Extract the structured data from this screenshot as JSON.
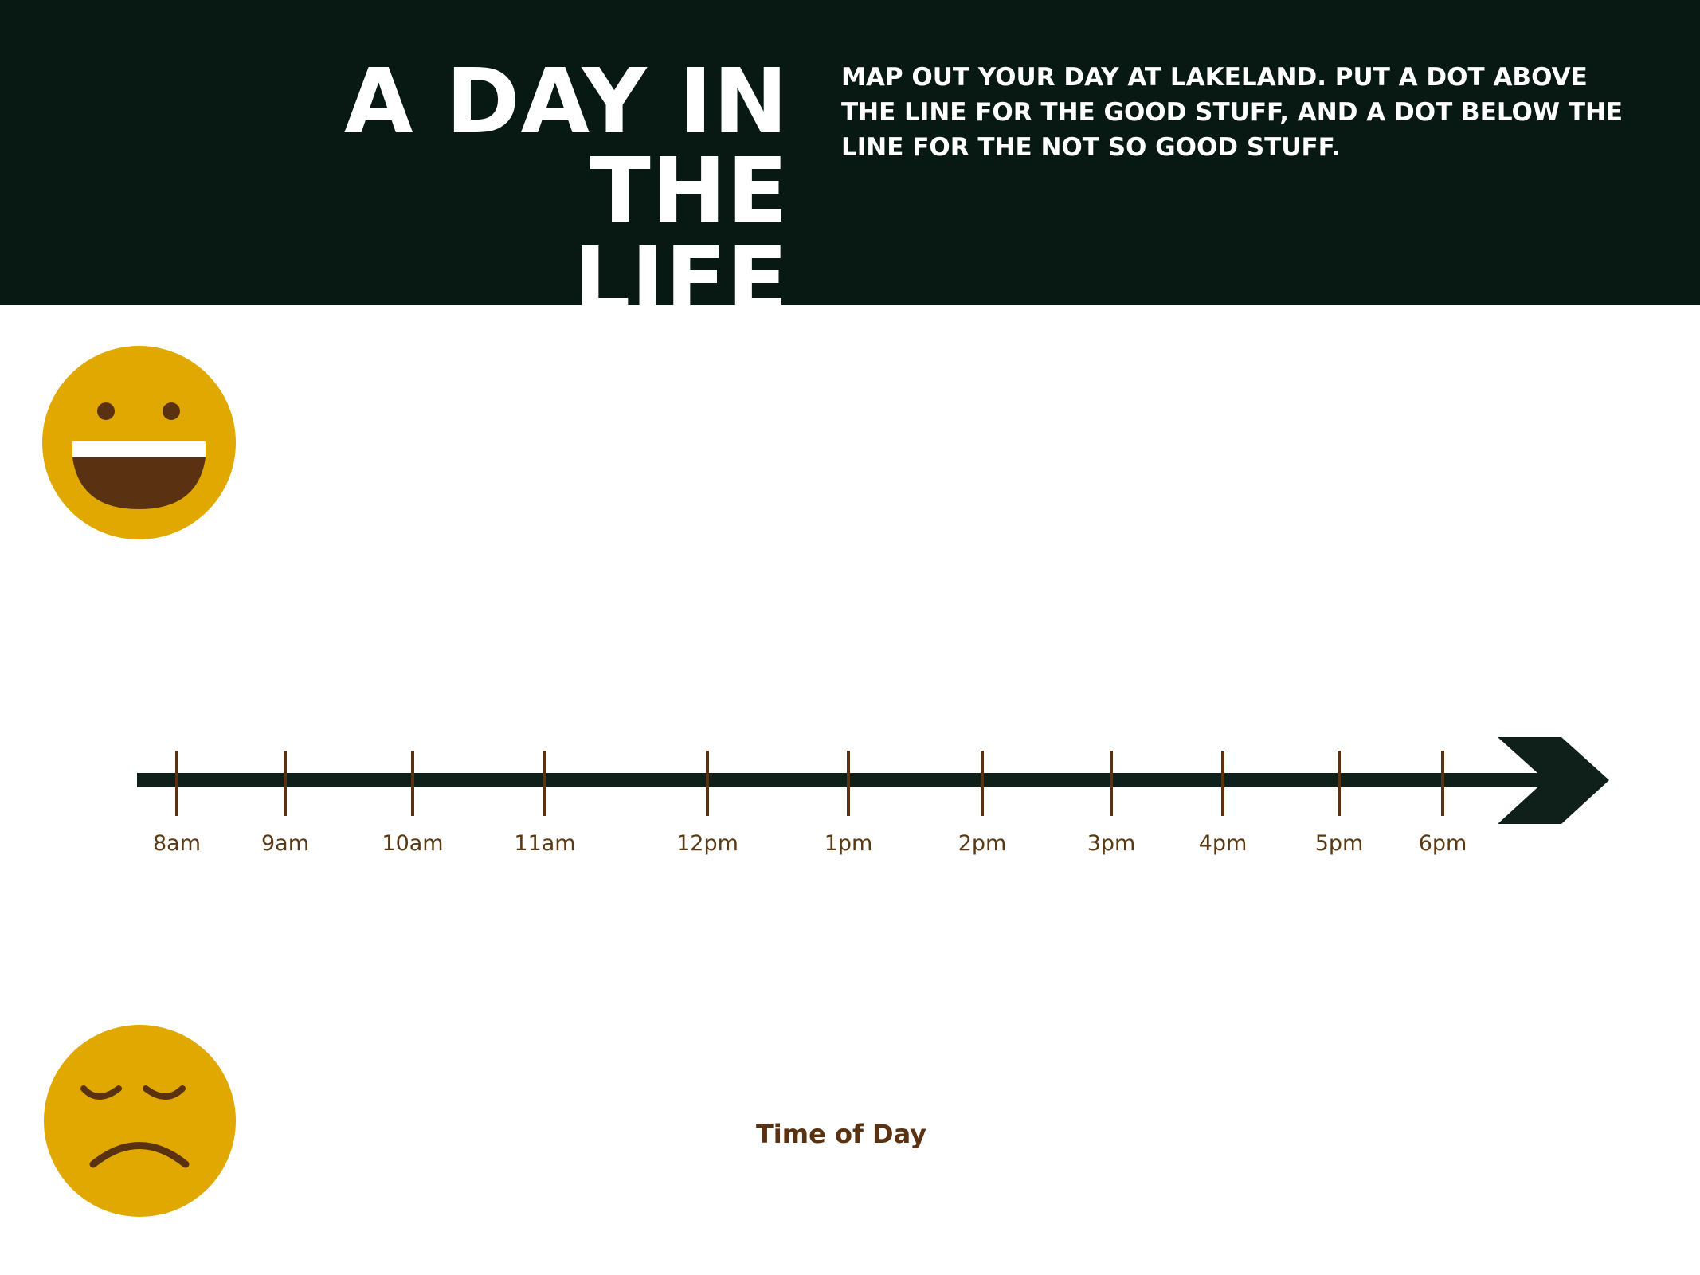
{
  "header": {
    "title_line1": "A DAY IN THE",
    "title_line2": "LIFE",
    "instructions": "MAP OUT YOUR DAY AT LAKELAND. PUT A DOT ABOVE THE LINE FOR THE GOOD STUFF, AND A DOT BELOW THE LINE FOR THE NOT SO GOOD STUFF."
  },
  "faces": {
    "good": {
      "icon": "happy-face-icon"
    },
    "bad": {
      "icon": "sad-face-icon"
    }
  },
  "timeline": {
    "ticks": [
      "8am",
      "9am",
      "10am",
      "11am",
      "12pm",
      "1pm",
      "2pm",
      "3pm",
      "4pm",
      "5pm",
      "6pm"
    ],
    "axis_label": "Time of Day",
    "arrow_icon": "arrow-right-icon"
  },
  "colors": {
    "banner": "#081914",
    "face": "#e0a800",
    "brown": "#5a3211",
    "line": "#0f1f19"
  }
}
